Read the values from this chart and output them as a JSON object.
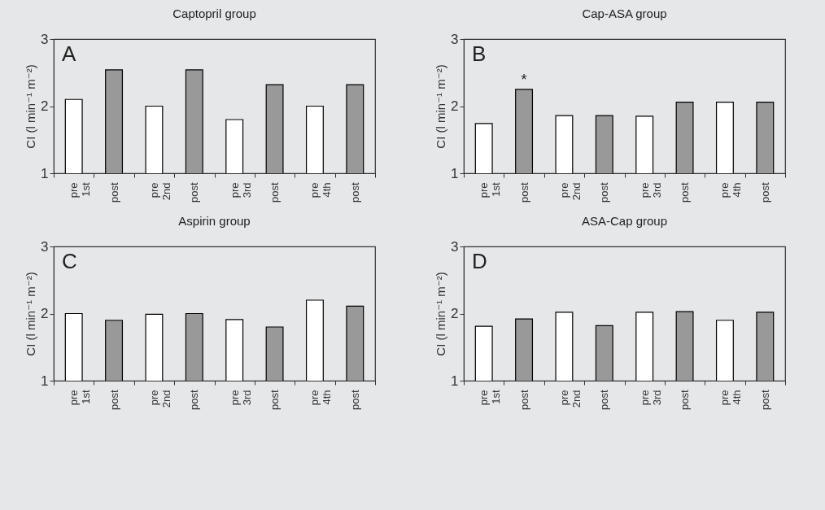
{
  "chart_data": [
    {
      "type": "bar",
      "title": "Captopril group",
      "ylabel": "CI (l min⁻¹ m⁻²)",
      "categories": [
        "pre 1st",
        "post",
        "pre 2nd",
        "post",
        "pre 3rd",
        "post",
        "pre 4th",
        "post"
      ],
      "values": [
        2.1,
        2.54,
        2.0,
        2.54,
        1.8,
        2.32,
        2.0,
        2.32
      ],
      "colors": [
        "#ffffff",
        "#999999",
        "#ffffff",
        "#999999",
        "#ffffff",
        "#999999",
        "#ffffff",
        "#999999"
      ],
      "ylim": [
        1,
        3
      ],
      "yticks": [
        1,
        2,
        3
      ],
      "annotations": [
        "A"
      ]
    },
    {
      "type": "bar",
      "title": "Cap-ASA group",
      "ylabel": "CI (l min⁻¹ m⁻²)",
      "categories": [
        "pre 1st",
        "post",
        "pre 2nd",
        "post",
        "pre 3rd",
        "post",
        "pre 4th",
        "post"
      ],
      "values": [
        1.74,
        2.25,
        1.86,
        1.86,
        1.85,
        2.06,
        2.06,
        2.06
      ],
      "colors": [
        "#ffffff",
        "#999999",
        "#ffffff",
        "#999999",
        "#ffffff",
        "#999999",
        "#ffffff",
        "#999999"
      ],
      "ylim": [
        1,
        3
      ],
      "yticks": [
        1,
        2,
        3
      ],
      "annotations": [
        "B",
        {
          "text": "*",
          "x": "post",
          "y": 2.25
        }
      ]
    },
    {
      "type": "bar",
      "title": "Aspirin group",
      "ylabel": "CI (l min⁻¹ m⁻²)",
      "categories": [
        "pre 1st",
        "post",
        "pre 2nd",
        "post",
        "pre 3rd",
        "post",
        "pre 4th",
        "post"
      ],
      "values": [
        2.0,
        1.9,
        1.99,
        2.0,
        1.91,
        1.8,
        2.2,
        2.11
      ],
      "colors": [
        "#ffffff",
        "#999999",
        "#ffffff",
        "#999999",
        "#ffffff",
        "#999999",
        "#ffffff",
        "#999999"
      ],
      "ylim": [
        1,
        3
      ],
      "yticks": [
        1,
        2,
        3
      ],
      "annotations": [
        "C"
      ]
    },
    {
      "type": "bar",
      "title": "ASA-Cap group",
      "ylabel": "CI (l min⁻¹ m⁻²)",
      "categories": [
        "pre 1st",
        "post",
        "pre 2nd",
        "post",
        "pre 3rd",
        "post",
        "pre 4th",
        "post"
      ],
      "values": [
        1.81,
        1.92,
        2.02,
        1.82,
        2.02,
        2.03,
        1.9,
        2.02
      ],
      "colors": [
        "#ffffff",
        "#999999",
        "#ffffff",
        "#999999",
        "#ffffff",
        "#999999",
        "#ffffff",
        "#999999"
      ],
      "ylim": [
        1,
        3
      ],
      "yticks": [
        1,
        2,
        3
      ],
      "annotations": [
        "D"
      ]
    }
  ]
}
